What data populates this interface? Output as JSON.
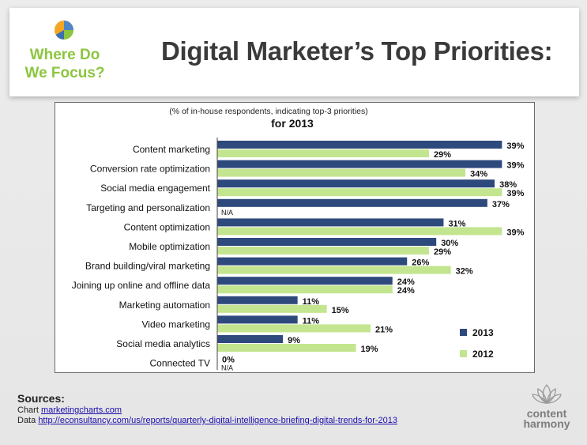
{
  "header": {
    "side_title_line1": "Where Do",
    "side_title_line2": "We Focus?",
    "title": "Digital Marketer’s Top Priorities:"
  },
  "chart_data": {
    "type": "bar",
    "orientation": "horizontal",
    "title": "for 2013",
    "subtitle": "(% of in-house respondents, indicating top-3 priorities)",
    "categories": [
      "Content marketing",
      "Conversion rate optimization",
      "Social media engagement",
      "Targeting and personalization",
      "Content optimization",
      "Mobile optimization",
      "Brand building/viral marketing",
      "Joining up online and offline data",
      "Marketing automation",
      "Video marketing",
      "Social media analytics",
      "Connected TV"
    ],
    "series": [
      {
        "name": "2013",
        "color": "#2e4a7d",
        "values": [
          39,
          39,
          38,
          37,
          31,
          30,
          26,
          24,
          11,
          11,
          9,
          0
        ]
      },
      {
        "name": "2012",
        "color": "#c3e58f",
        "values": [
          29,
          34,
          39,
          null,
          39,
          29,
          32,
          24,
          15,
          21,
          19,
          null
        ]
      }
    ],
    "na_label": "N/A",
    "xlim": [
      0,
      42
    ],
    "legend_position": "bottom-right",
    "grid": false
  },
  "sources": {
    "title": "Sources:",
    "chart_prefix": "Chart",
    "chart_link": "marketingcharts.com",
    "data_prefix": "Data",
    "data_link": "http://econsultancy.com/us/reports/quarterly-digital-intelligence-briefing-digital-trends-for-2013"
  },
  "brand": {
    "line1": "content",
    "line2": "harmony"
  }
}
